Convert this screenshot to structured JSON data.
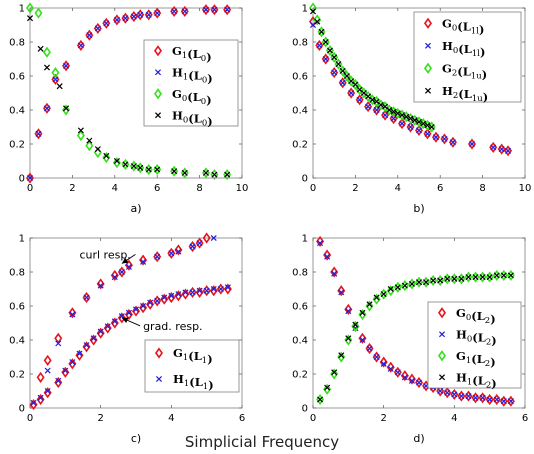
{
  "figure": {
    "xlabel": "Simplicial Frequency"
  },
  "colors": {
    "red": "#e8141b",
    "blue": "#1f1fe0",
    "green": "#36e01c",
    "black": "#000000"
  },
  "chart_data": [
    {
      "type": "scatter",
      "panel": "a)",
      "xlim": [
        0,
        10
      ],
      "ylim": [
        0,
        1
      ],
      "xticks": [
        0,
        2,
        4,
        6,
        8,
        10
      ],
      "yticks": [
        0,
        0.2,
        0.4,
        0.6,
        0.8,
        1
      ],
      "legend_position": "right",
      "series": [
        {
          "name": "G1(L0)",
          "label_main": "G",
          "label_sub": "1",
          "label_arg": "L",
          "label_argsub": "0",
          "marker": "diamond",
          "color": "red",
          "x": [
            0,
            0.4,
            0.8,
            1.2,
            1.7,
            2.4,
            2.8,
            3.2,
            3.6,
            4.1,
            4.5,
            4.9,
            5.2,
            5.6,
            6.0,
            6.8,
            7.3,
            8.3,
            8.7,
            9.3
          ],
          "y": [
            0,
            0.26,
            0.41,
            0.58,
            0.66,
            0.78,
            0.84,
            0.88,
            0.91,
            0.93,
            0.94,
            0.95,
            0.96,
            0.96,
            0.97,
            0.98,
            0.98,
            0.99,
            0.99,
            0.99
          ]
        },
        {
          "name": "H1(L0)",
          "label_main": "H",
          "label_sub": "1",
          "label_arg": "L",
          "label_argsub": "0",
          "marker": "x",
          "color": "blue",
          "x": [
            0,
            0.4,
            0.8,
            1.2,
            1.7,
            2.4,
            2.8,
            3.2,
            3.6,
            4.1,
            4.5,
            4.9,
            5.2,
            5.6,
            6.0,
            6.8,
            7.3,
            8.3,
            8.7,
            9.3
          ],
          "y": [
            0,
            0.26,
            0.41,
            0.58,
            0.66,
            0.78,
            0.84,
            0.88,
            0.91,
            0.93,
            0.94,
            0.95,
            0.96,
            0.96,
            0.97,
            0.98,
            0.98,
            0.99,
            0.99,
            0.99
          ]
        },
        {
          "name": "G0(L0)",
          "label_main": "G",
          "label_sub": "0",
          "label_arg": "L",
          "label_argsub": "0",
          "marker": "diamond",
          "color": "green",
          "x": [
            0,
            0.4,
            0.8,
            1.2,
            1.7,
            2.4,
            2.8,
            3.2,
            3.6,
            4.1,
            4.5,
            4.9,
            5.2,
            5.6,
            6.0,
            6.8,
            7.3,
            8.3,
            8.7,
            9.3
          ],
          "y": [
            1.0,
            0.97,
            0.74,
            0.62,
            0.4,
            0.25,
            0.19,
            0.15,
            0.12,
            0.09,
            0.08,
            0.07,
            0.06,
            0.05,
            0.05,
            0.04,
            0.03,
            0.03,
            0.02,
            0.02
          ]
        },
        {
          "name": "H0(L0)",
          "label_main": "H",
          "label_sub": "0",
          "label_arg": "L",
          "label_argsub": "0",
          "marker": "x",
          "color": "black",
          "x": [
            0,
            0.5,
            0.8,
            1.4,
            1.7,
            2.4,
            2.8,
            3.2,
            3.6,
            4.1,
            4.5,
            4.9,
            5.2,
            5.6,
            6.0,
            6.8,
            7.3,
            8.3,
            8.7,
            9.3
          ],
          "y": [
            0.94,
            0.76,
            0.65,
            0.54,
            0.41,
            0.28,
            0.22,
            0.17,
            0.13,
            0.1,
            0.08,
            0.07,
            0.06,
            0.05,
            0.05,
            0.04,
            0.03,
            0.03,
            0.02,
            0.02
          ]
        }
      ]
    },
    {
      "type": "scatter",
      "panel": "b)",
      "xlim": [
        0,
        10
      ],
      "ylim": [
        0,
        1
      ],
      "xticks": [
        0,
        2,
        4,
        6,
        8,
        10
      ],
      "yticks": [
        0,
        0.2,
        0.4,
        0.6,
        0.8,
        1
      ],
      "legend_position": "top-right",
      "series": [
        {
          "name": "G0(L1l)",
          "label_main": "G",
          "label_sub": "0",
          "label_arg": "L",
          "label_argsub": "1l",
          "marker": "diamond",
          "color": "red",
          "x": [
            0,
            0.3,
            0.6,
            1.0,
            1.4,
            1.8,
            2.2,
            2.6,
            3.0,
            3.4,
            3.8,
            4.2,
            4.6,
            5.0,
            5.4,
            5.8,
            6.2,
            6.6,
            7.5,
            8.5,
            8.9,
            9.2
          ],
          "y": [
            0.92,
            0.78,
            0.7,
            0.62,
            0.56,
            0.5,
            0.46,
            0.42,
            0.4,
            0.37,
            0.35,
            0.32,
            0.3,
            0.28,
            0.26,
            0.24,
            0.23,
            0.21,
            0.2,
            0.18,
            0.17,
            0.16
          ]
        },
        {
          "name": "H0(L1l)",
          "label_main": "H",
          "label_sub": "0",
          "label_arg": "L",
          "label_argsub": "1l",
          "marker": "x",
          "color": "blue",
          "x": [
            0,
            0.3,
            0.6,
            1.0,
            1.4,
            1.8,
            2.2,
            2.6,
            3.0,
            3.4,
            3.8,
            4.2,
            4.6,
            5.0,
            5.4,
            5.8,
            6.2,
            6.6,
            7.5,
            8.5,
            8.9,
            9.2
          ],
          "y": [
            0.9,
            0.78,
            0.7,
            0.62,
            0.56,
            0.5,
            0.46,
            0.42,
            0.4,
            0.37,
            0.35,
            0.32,
            0.3,
            0.28,
            0.26,
            0.24,
            0.23,
            0.21,
            0.2,
            0.18,
            0.17,
            0.16
          ]
        },
        {
          "name": "G2(L1u)",
          "label_main": "G",
          "label_sub": "2",
          "label_arg": "L",
          "label_argsub": "1u",
          "marker": "diamond",
          "color": "green",
          "x": [
            0,
            0.2,
            0.4,
            0.6,
            0.8,
            1.0,
            1.2,
            1.4,
            1.6,
            1.8,
            2.0,
            2.2,
            2.4,
            2.6,
            2.8,
            3.0,
            3.2,
            3.4,
            3.6,
            3.8,
            4.0,
            4.2,
            4.4,
            4.6,
            4.8,
            5.0,
            5.2,
            5.4,
            5.6
          ],
          "y": [
            1.0,
            0.93,
            0.86,
            0.8,
            0.75,
            0.71,
            0.67,
            0.63,
            0.6,
            0.57,
            0.55,
            0.52,
            0.5,
            0.48,
            0.46,
            0.45,
            0.43,
            0.42,
            0.4,
            0.39,
            0.38,
            0.37,
            0.36,
            0.35,
            0.34,
            0.33,
            0.32,
            0.31,
            0.3
          ]
        },
        {
          "name": "H2(L1u)",
          "label_main": "H",
          "label_sub": "2",
          "label_arg": "L",
          "label_argsub": "1u",
          "marker": "x",
          "color": "black",
          "x": [
            0,
            0.2,
            0.4,
            0.6,
            0.8,
            1.0,
            1.2,
            1.4,
            1.6,
            1.8,
            2.0,
            2.2,
            2.4,
            2.6,
            2.8,
            3.0,
            3.2,
            3.4,
            3.6,
            3.8,
            4.0,
            4.2,
            4.4,
            4.6,
            4.8,
            5.0,
            5.2,
            5.4,
            5.6
          ],
          "y": [
            0.98,
            0.92,
            0.86,
            0.8,
            0.75,
            0.71,
            0.67,
            0.63,
            0.6,
            0.57,
            0.55,
            0.52,
            0.5,
            0.48,
            0.46,
            0.45,
            0.43,
            0.42,
            0.4,
            0.39,
            0.38,
            0.37,
            0.36,
            0.35,
            0.34,
            0.33,
            0.32,
            0.31,
            0.3
          ]
        }
      ]
    },
    {
      "type": "scatter",
      "panel": "c)",
      "xlim": [
        0,
        6
      ],
      "ylim": [
        0,
        1
      ],
      "xticks": [
        0,
        2,
        4,
        6
      ],
      "yticks": [
        0,
        0.2,
        0.4,
        0.6,
        0.8,
        1
      ],
      "legend_position": "bottom-right",
      "annotations": [
        {
          "text": "curl resp.",
          "x": 1.4,
          "y": 0.88,
          "arrow_to": [
            2.6,
            0.85
          ]
        },
        {
          "text": "grad. resp.",
          "x": 3.2,
          "y": 0.46,
          "arrow_to": [
            2.6,
            0.53
          ]
        }
      ],
      "series": [
        {
          "name": "G1(L1)",
          "label_main": "G",
          "label_sub": "1",
          "label_arg": "L",
          "label_argsub": "1",
          "marker": "diamond",
          "color": "red",
          "x": [
            0.1,
            0.3,
            0.5,
            0.8,
            1.0,
            1.2,
            1.4,
            1.6,
            1.8,
            2.0,
            2.2,
            2.4,
            2.6,
            2.8,
            3.0,
            3.2,
            3.4,
            3.6,
            3.8,
            4.0,
            4.2,
            4.4,
            4.6,
            4.8,
            5.0,
            5.2,
            5.4,
            5.6,
            0.3,
            0.5,
            0.8,
            1.2,
            1.6,
            2.0,
            2.4,
            2.6,
            2.8,
            3.2,
            3.6,
            4.0,
            4.2,
            4.6,
            4.8,
            5.0
          ],
          "y": [
            0.02,
            0.05,
            0.09,
            0.15,
            0.21,
            0.26,
            0.31,
            0.36,
            0.4,
            0.44,
            0.47,
            0.5,
            0.53,
            0.55,
            0.57,
            0.59,
            0.61,
            0.63,
            0.64,
            0.65,
            0.66,
            0.67,
            0.68,
            0.68,
            0.69,
            0.69,
            0.7,
            0.7,
            0.18,
            0.28,
            0.41,
            0.56,
            0.65,
            0.73,
            0.78,
            0.8,
            0.84,
            0.87,
            0.89,
            0.91,
            0.93,
            0.95,
            0.97,
            1.0
          ]
        },
        {
          "name": "H1(L1)",
          "label_main": "H",
          "label_sub": "1",
          "label_arg": "L",
          "label_argsub": "1",
          "marker": "x",
          "color": "blue",
          "x": [
            0.1,
            0.3,
            0.5,
            0.8,
            1.0,
            1.2,
            1.4,
            1.6,
            1.8,
            2.0,
            2.2,
            2.4,
            2.6,
            2.8,
            3.0,
            3.2,
            3.4,
            3.6,
            3.8,
            4.0,
            4.2,
            4.4,
            4.6,
            4.8,
            5.0,
            5.2,
            5.4,
            5.6,
            0.5,
            0.8,
            1.2,
            1.6,
            2.0,
            2.4,
            2.6,
            2.8,
            3.2,
            3.6,
            4.0,
            4.2,
            4.6,
            4.8,
            5.2
          ],
          "y": [
            0.03,
            0.06,
            0.1,
            0.16,
            0.22,
            0.27,
            0.32,
            0.37,
            0.41,
            0.45,
            0.48,
            0.51,
            0.54,
            0.56,
            0.58,
            0.6,
            0.62,
            0.63,
            0.65,
            0.66,
            0.67,
            0.68,
            0.68,
            0.69,
            0.69,
            0.7,
            0.7,
            0.71,
            0.22,
            0.38,
            0.55,
            0.65,
            0.72,
            0.77,
            0.8,
            0.83,
            0.86,
            0.89,
            0.91,
            0.92,
            0.95,
            0.97,
            1.0
          ]
        }
      ]
    },
    {
      "type": "scatter",
      "panel": "d)",
      "xlim": [
        0,
        6
      ],
      "ylim": [
        0,
        1
      ],
      "xticks": [
        0,
        2,
        4,
        6
      ],
      "yticks": [
        0,
        0.2,
        0.4,
        0.6,
        0.8,
        1
      ],
      "legend_position": "right",
      "series": [
        {
          "name": "G0(L2)",
          "label_main": "G",
          "label_sub": "0",
          "label_arg": "L",
          "label_argsub": "2",
          "marker": "diamond",
          "color": "red",
          "x": [
            0.2,
            0.4,
            0.6,
            0.8,
            1.0,
            1.2,
            1.4,
            1.6,
            1.8,
            2.0,
            2.2,
            2.4,
            2.6,
            2.8,
            3.0,
            3.2,
            3.4,
            3.6,
            3.8,
            4.0,
            4.2,
            4.4,
            4.6,
            4.8,
            5.0,
            5.2,
            5.4,
            5.6
          ],
          "y": [
            0.98,
            0.9,
            0.8,
            0.69,
            0.58,
            0.48,
            0.41,
            0.35,
            0.3,
            0.27,
            0.24,
            0.21,
            0.19,
            0.17,
            0.15,
            0.13,
            0.12,
            0.1,
            0.09,
            0.08,
            0.07,
            0.07,
            0.06,
            0.06,
            0.05,
            0.05,
            0.04,
            0.04
          ]
        },
        {
          "name": "H0(L2)",
          "label_main": "H",
          "label_sub": "0",
          "label_arg": "L",
          "label_argsub": "2",
          "marker": "x",
          "color": "blue",
          "x": [
            0.2,
            0.4,
            0.6,
            0.8,
            1.0,
            1.2,
            1.4,
            1.6,
            1.8,
            2.0,
            2.2,
            2.4,
            2.6,
            2.8,
            3.0,
            3.2,
            3.4,
            3.6,
            3.8,
            4.0,
            4.2,
            4.4,
            4.6,
            4.8,
            5.0,
            5.2,
            5.4,
            5.6
          ],
          "y": [
            0.97,
            0.89,
            0.79,
            0.68,
            0.57,
            0.47,
            0.4,
            0.35,
            0.3,
            0.26,
            0.23,
            0.21,
            0.18,
            0.16,
            0.15,
            0.13,
            0.12,
            0.1,
            0.09,
            0.08,
            0.07,
            0.07,
            0.06,
            0.06,
            0.05,
            0.05,
            0.04,
            0.04
          ]
        },
        {
          "name": "G1(L2)",
          "label_main": "G",
          "label_sub": "1",
          "label_arg": "L",
          "label_argsub": "2",
          "marker": "diamond",
          "color": "green",
          "x": [
            0.2,
            0.4,
            0.6,
            0.8,
            1.0,
            1.2,
            1.4,
            1.6,
            1.8,
            2.0,
            2.2,
            2.4,
            2.6,
            2.8,
            3.0,
            3.2,
            3.4,
            3.6,
            3.8,
            4.0,
            4.2,
            4.4,
            4.6,
            4.8,
            5.0,
            5.2,
            5.4,
            5.6
          ],
          "y": [
            0.05,
            0.11,
            0.2,
            0.3,
            0.4,
            0.48,
            0.55,
            0.6,
            0.64,
            0.67,
            0.69,
            0.71,
            0.72,
            0.73,
            0.74,
            0.74,
            0.75,
            0.75,
            0.76,
            0.76,
            0.76,
            0.77,
            0.77,
            0.77,
            0.77,
            0.78,
            0.78,
            0.78
          ]
        },
        {
          "name": "H1(L2)",
          "label_main": "H",
          "label_sub": "1",
          "label_arg": "L",
          "label_argsub": "2",
          "marker": "x",
          "color": "black",
          "x": [
            0.2,
            0.4,
            0.6,
            0.8,
            1.0,
            1.2,
            1.4,
            1.6,
            1.8,
            2.0,
            2.2,
            2.4,
            2.6,
            2.8,
            3.0,
            3.2,
            3.4,
            3.6,
            3.8,
            4.0,
            4.2,
            4.4,
            4.6,
            4.8,
            5.0,
            5.2,
            5.4,
            5.6
          ],
          "y": [
            0.05,
            0.12,
            0.21,
            0.31,
            0.41,
            0.49,
            0.56,
            0.61,
            0.65,
            0.67,
            0.7,
            0.71,
            0.72,
            0.73,
            0.74,
            0.74,
            0.75,
            0.75,
            0.76,
            0.76,
            0.76,
            0.77,
            0.77,
            0.77,
            0.77,
            0.78,
            0.78,
            0.78
          ]
        }
      ]
    }
  ]
}
